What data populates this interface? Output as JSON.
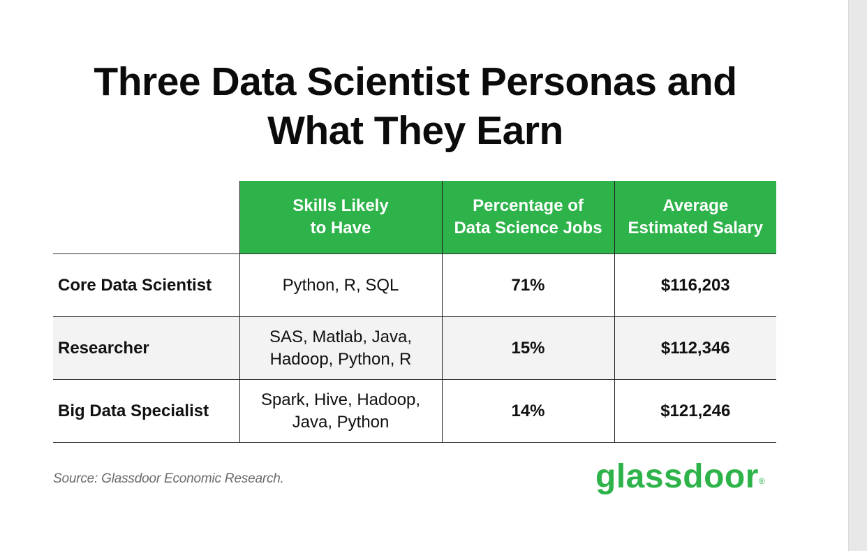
{
  "title": {
    "line1": "Three Data Scientist Personas and",
    "line2": "What They Earn"
  },
  "table": {
    "headers": [
      {
        "line1": "Skills Likely",
        "line2": "to Have"
      },
      {
        "line1": "Percentage of",
        "line2": "Data Science Jobs"
      },
      {
        "line1": "Average",
        "line2": "Estimated Salary"
      }
    ],
    "rows": [
      {
        "persona": "Core Data Scientist",
        "skills_line1": "Python, R, SQL",
        "skills_line2": "",
        "percentage": "71%",
        "salary": "$116,203"
      },
      {
        "persona": "Researcher",
        "skills_line1": "SAS, Matlab, Java,",
        "skills_line2": "Hadoop, Python, R",
        "percentage": "15%",
        "salary": "$112,346"
      },
      {
        "persona": "Big Data Specialist",
        "skills_line1": "Spark, Hive, Hadoop,",
        "skills_line2": "Java, Python",
        "percentage": "14%",
        "salary": "$121,246"
      }
    ]
  },
  "source": "Source: Glassdoor Economic Research.",
  "logo": {
    "text": "glassdoor",
    "mark": "®"
  },
  "colors": {
    "accent_green": "#2db34a",
    "row_alt": "#f3f3f3"
  }
}
